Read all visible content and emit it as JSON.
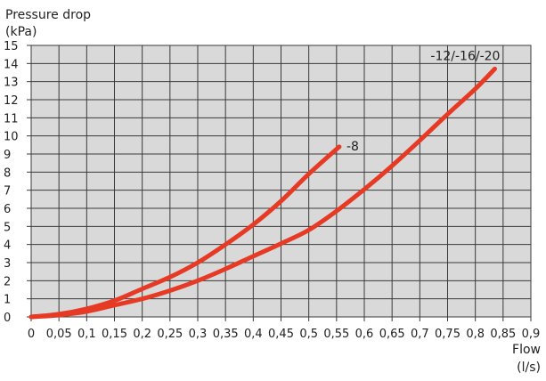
{
  "chart_data": {
    "type": "line",
    "ylabel": "Pressure drop",
    "yunit": "(kPa)",
    "xlabel": "Flow",
    "xunit": "(l/s)",
    "xlim": [
      0,
      0.9
    ],
    "ylim": [
      0,
      15
    ],
    "grid": true,
    "x_ticks": [
      "0",
      "0,05",
      "0,1",
      "0,15",
      "0,2",
      "0,25",
      "0,3",
      "0,35",
      "0,4",
      "0,45",
      "0,5",
      "0,55",
      "0,6",
      "0,65",
      "0,7",
      "0,75",
      "0,8",
      "0,85",
      "0,9"
    ],
    "y_ticks": [
      "0",
      "1",
      "2",
      "3",
      "4",
      "5",
      "6",
      "7",
      "8",
      "9",
      "10",
      "11",
      "12",
      "13",
      "14",
      "15"
    ],
    "line_color": "#e63a24",
    "plot_background": "#d9d9d9",
    "series": [
      {
        "name": "-8",
        "x": [
          0,
          0.05,
          0.1,
          0.15,
          0.2,
          0.25,
          0.3,
          0.35,
          0.4,
          0.45,
          0.5,
          0.555
        ],
        "y": [
          0,
          0.15,
          0.45,
          0.9,
          1.55,
          2.2,
          3.0,
          4.0,
          5.1,
          6.4,
          7.9,
          9.4
        ]
      },
      {
        "name": "-12/-16/-20",
        "x": [
          0,
          0.05,
          0.1,
          0.15,
          0.2,
          0.25,
          0.3,
          0.35,
          0.4,
          0.45,
          0.5,
          0.55,
          0.6,
          0.65,
          0.7,
          0.75,
          0.8,
          0.835
        ],
        "y": [
          0,
          0.1,
          0.3,
          0.65,
          1.0,
          1.45,
          2.0,
          2.65,
          3.35,
          4.05,
          4.8,
          5.85,
          7.05,
          8.35,
          9.75,
          11.2,
          12.6,
          13.7
        ]
      }
    ]
  }
}
